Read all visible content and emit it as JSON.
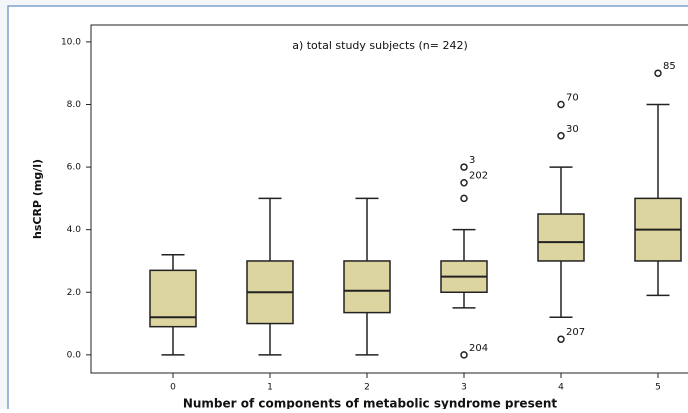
{
  "chart_data": {
    "type": "boxplot",
    "title": "a) total study subjects (n= 242)",
    "x_label": "Number of components of metabolic syndrome present",
    "y_label": "hsCRP (mg/l)",
    "categories": [
      "0",
      "1",
      "2",
      "3",
      "4",
      "5"
    ],
    "color": "#dcd59f",
    "ylim": [
      -0.58,
      10.54
    ],
    "yticks": [
      {
        "value": 0,
        "label": "0.0"
      },
      {
        "value": 2,
        "label": "2.0"
      },
      {
        "value": 4,
        "label": "4.0"
      },
      {
        "value": 6,
        "label": "6.0"
      },
      {
        "value": 8,
        "label": "8.0"
      },
      {
        "value": 10,
        "label": "10.0"
      }
    ],
    "boxes": [
      {
        "whisker_low": 0,
        "q1": 0.9,
        "median": 1.2,
        "q3": 2.7,
        "whisker_high": 3.2,
        "outliers": [],
        "outlier_ids": []
      },
      {
        "whisker_low": 0,
        "q1": 1.0,
        "median": 2.0,
        "q3": 3.0,
        "whisker_high": 5.0,
        "outliers": [],
        "outlier_ids": []
      },
      {
        "whisker_low": 0,
        "q1": 1.35,
        "median": 2.05,
        "q3": 3.0,
        "whisker_high": 5.0,
        "outliers": [],
        "outlier_ids": []
      },
      {
        "whisker_low": 1.5,
        "q1": 2.0,
        "median": 2.5,
        "q3": 3.0,
        "whisker_high": 4.0,
        "outliers": [
          6.0,
          5.5,
          5.0,
          0.0
        ],
        "outlier_ids": [
          "3",
          "202",
          null,
          "204"
        ]
      },
      {
        "whisker_low": 1.2,
        "q1": 3.0,
        "median": 3.6,
        "q3": 4.5,
        "whisker_high": 6.0,
        "outliers": [
          8.0,
          7.0,
          0.5
        ],
        "outlier_ids": [
          "70",
          "30",
          "207"
        ]
      },
      {
        "whisker_low": 1.9,
        "q1": 3.0,
        "median": 4.0,
        "q3": 5.0,
        "whisker_high": 8.0,
        "outliers": [
          9.0
        ],
        "outlier_ids": [
          "85"
        ]
      }
    ]
  }
}
